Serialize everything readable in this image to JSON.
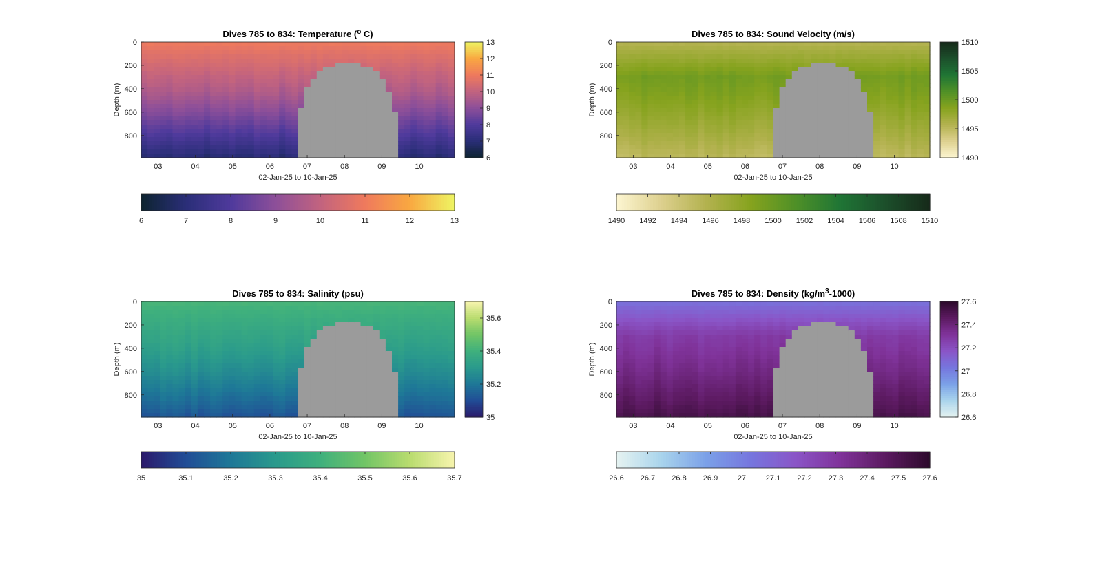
{
  "figure": {
    "background": "#ffffff",
    "mask_color": "#9b9b9b"
  },
  "chart_data": [
    {
      "type": "heatmap",
      "title": "Dives 785 to 834: Temperature (",
      "title_sup": "o",
      "title_end": " C)",
      "xlabel": "02-Jan-25 to 10-Jan-25",
      "ylabel": "Depth (m)",
      "x_ticks": [
        "03",
        "04",
        "05",
        "06",
        "07",
        "08",
        "09",
        "10"
      ],
      "x_tick_days": [
        3,
        4,
        5,
        6,
        7,
        8,
        9,
        10
      ],
      "xlim_days": [
        2.55,
        10.95
      ],
      "y_ticks": [
        0,
        200,
        400,
        600,
        800
      ],
      "ylim": [
        0,
        990
      ],
      "clim": [
        6,
        13
      ],
      "side_colorbar_ticks": [
        "6",
        "7",
        "8",
        "9",
        "10",
        "11",
        "12",
        "13"
      ],
      "bottom_colorbar_ticks": [
        "6",
        "7",
        "8",
        "9",
        "10",
        "11",
        "12",
        "13"
      ],
      "colormap": [
        "#0d2430",
        "#2a2e78",
        "#4f3a9c",
        "#8d4f99",
        "#c2637f",
        "#ef7a5d",
        "#f9a841",
        "#eef563"
      ],
      "profile": {
        "surface": 11.0,
        "mid": 10.0,
        "deep": 6.9
      },
      "gap": {
        "start_day": 6.75,
        "end_day": 9.42,
        "min_depth": 190
      }
    },
    {
      "type": "heatmap",
      "title": "Dives 785 to 834: Sound Velocity (m/s)",
      "xlabel": "02-Jan-25 to 10-Jan-25",
      "ylabel": "Depth (m)",
      "x_ticks": [
        "03",
        "04",
        "05",
        "06",
        "07",
        "08",
        "09",
        "10"
      ],
      "x_tick_days": [
        3,
        4,
        5,
        6,
        7,
        8,
        9,
        10
      ],
      "xlim_days": [
        2.55,
        10.95
      ],
      "y_ticks": [
        0,
        200,
        400,
        600,
        800
      ],
      "ylim": [
        0,
        990
      ],
      "clim": [
        1490,
        1510
      ],
      "side_colorbar_ticks": [
        "1490",
        "1495",
        "1500",
        "1505",
        "1510"
      ],
      "bottom_colorbar_ticks": [
        "1490",
        "1492",
        "1494",
        "1496",
        "1498",
        "1500",
        "1502",
        "1504",
        "1506",
        "1508",
        "1510"
      ],
      "colormap": [
        "#fdf6d2",
        "#ddd08e",
        "#b3b24f",
        "#86a31e",
        "#4f9027",
        "#1f7535",
        "#1c4f2b",
        "#162a1a"
      ],
      "profile": {
        "surface": 1495.5,
        "mid": 1499.5,
        "deep": 1495.0
      },
      "gap": {
        "start_day": 6.75,
        "end_day": 9.42,
        "min_depth": 190
      }
    },
    {
      "type": "heatmap",
      "title": "Dives 785 to 834: Salinity (psu)",
      "xlabel": "02-Jan-25 to 10-Jan-25",
      "ylabel": "Depth (m)",
      "x_ticks": [
        "03",
        "04",
        "05",
        "06",
        "07",
        "08",
        "09",
        "10"
      ],
      "x_tick_days": [
        3,
        4,
        5,
        6,
        7,
        8,
        9,
        10
      ],
      "xlim_days": [
        2.55,
        10.95
      ],
      "y_ticks": [
        0,
        200,
        400,
        600,
        800
      ],
      "ylim": [
        0,
        990
      ],
      "clim": [
        35,
        35.7
      ],
      "side_colorbar_ticks": [
        "35",
        "35.2",
        "35.4",
        "35.6"
      ],
      "side_colorbar_values": [
        35,
        35.2,
        35.4,
        35.6
      ],
      "bottom_colorbar_ticks": [
        "35",
        "35.1",
        "35.2",
        "35.3",
        "35.4",
        "35.5",
        "35.6",
        "35.7"
      ],
      "colormap": [
        "#2b1a6b",
        "#214d96",
        "#1e7897",
        "#2a9a8c",
        "#3fb07d",
        "#72c566",
        "#b9dc6f",
        "#f7f4ae"
      ],
      "profile": {
        "surface": 35.42,
        "mid": 35.35,
        "deep": 35.12
      },
      "gap": {
        "start_day": 6.75,
        "end_day": 9.42,
        "min_depth": 190
      }
    },
    {
      "type": "heatmap",
      "title": "Dives 785 to 834: Density (kg/m",
      "title_sup": "3",
      "title_end": "-1000)",
      "xlabel": "02-Jan-25 to 10-Jan-25",
      "ylabel": "Depth (m)",
      "x_ticks": [
        "03",
        "04",
        "05",
        "06",
        "07",
        "08",
        "09",
        "10"
      ],
      "x_tick_days": [
        3,
        4,
        5,
        6,
        7,
        8,
        9,
        10
      ],
      "xlim_days": [
        2.55,
        10.95
      ],
      "y_ticks": [
        0,
        200,
        400,
        600,
        800
      ],
      "ylim": [
        0,
        990
      ],
      "clim": [
        26.6,
        27.6
      ],
      "side_colorbar_ticks": [
        "26.6",
        "26.8",
        "27",
        "27.2",
        "27.4",
        "27.6"
      ],
      "bottom_colorbar_ticks": [
        "26.6",
        "26.7",
        "26.8",
        "26.9",
        "27",
        "27.1",
        "27.2",
        "27.3",
        "27.4",
        "27.5",
        "27.6"
      ],
      "colormap": [
        "#e6f3f1",
        "#a9d4ec",
        "#7ba1e8",
        "#7676de",
        "#8a55c7",
        "#80339a",
        "#5c1a61",
        "#2d0a2c"
      ],
      "profile": {
        "surface": 27.05,
        "mid": 27.28,
        "deep": 27.52
      },
      "gap": {
        "start_day": 6.75,
        "end_day": 9.42,
        "min_depth": 190
      }
    }
  ]
}
